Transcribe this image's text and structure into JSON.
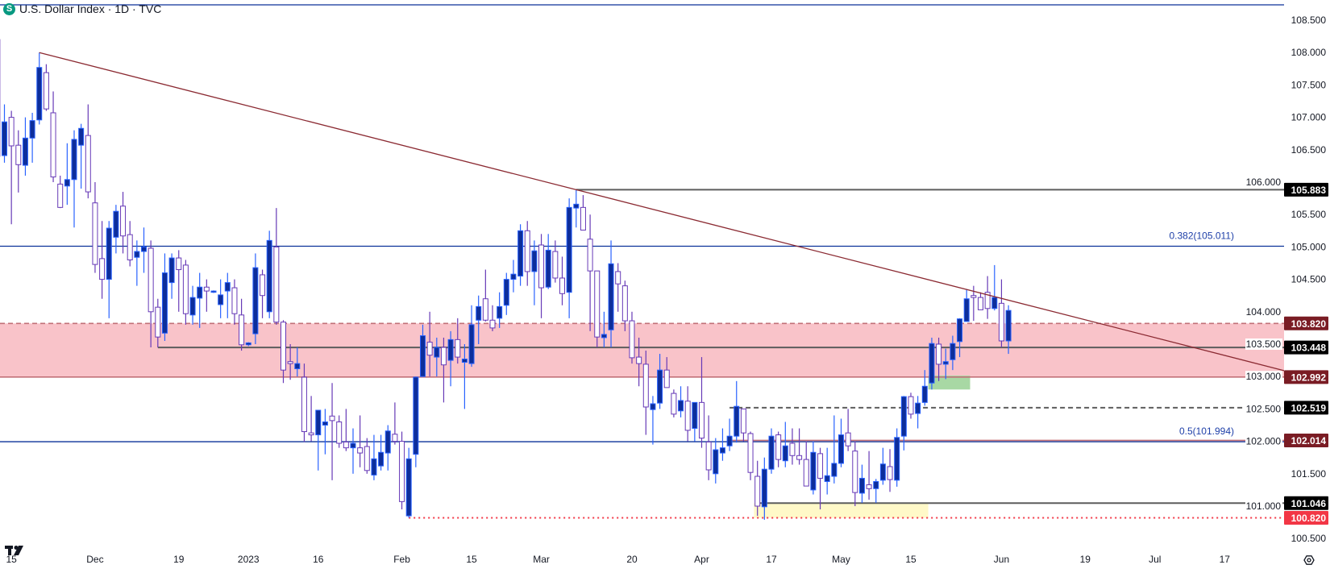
{
  "header": {
    "title": "U.S. Dollar Index · 1D · TVC",
    "symbol_icon": "S"
  },
  "colors": {
    "up_fill": "#0d2e9b",
    "up_border": "#2962ff",
    "down_fill": "#ffffff",
    "down_border": "#673ab7",
    "trendline": "#8b2a32",
    "fib": "#0c3299",
    "zone": "#f9c3c9",
    "zone_line": "#c27078",
    "level_gray": "#5d5d5d",
    "yellow_zone": "#fff9c8",
    "green_zone": "#a8d8a4",
    "label_black": "#000000",
    "label_red": "#7a1c24",
    "label_low": "#f23645"
  },
  "price_axis": {
    "ticks": [
      "108.500",
      "108.000",
      "107.500",
      "107.000",
      "106.500",
      "106.000",
      "105.500",
      "105.000",
      "104.500",
      "104.000",
      "103.500",
      "103.000",
      "102.500",
      "102.000",
      "101.500",
      "101.000",
      "100.500"
    ]
  },
  "time_axis": {
    "labels": [
      {
        "text": "15",
        "date": "2022-11-15"
      },
      {
        "text": "Dec",
        "date": "2022-12-01"
      },
      {
        "text": "19",
        "date": "2022-12-19"
      },
      {
        "text": "2023",
        "date": "2023-01-02"
      },
      {
        "text": "16",
        "date": "2023-01-16"
      },
      {
        "text": "Feb",
        "date": "2023-02-01"
      },
      {
        "text": "15",
        "date": "2023-02-15"
      },
      {
        "text": "Mar",
        "date": "2023-03-01"
      },
      {
        "text": "20",
        "date": "2023-03-20"
      },
      {
        "text": "Apr",
        "date": "2023-04-03"
      },
      {
        "text": "17",
        "date": "2023-04-17"
      },
      {
        "text": "May",
        "date": "2023-05-01"
      },
      {
        "text": "15",
        "date": "2023-05-15"
      },
      {
        "text": "Jun",
        "date": "2023-06-01"
      },
      {
        "text": "19",
        "date": "2023-06-19"
      },
      {
        "text": "Jul",
        "date": "2023-07-03"
      },
      {
        "text": "17",
        "date": "2023-07-17"
      }
    ]
  },
  "fib_levels": [
    {
      "label": "0.382(105.011)",
      "price": 105.011
    },
    {
      "label": "0.5(101.994)",
      "price": 101.994
    }
  ],
  "levels": [
    {
      "label": "105.883",
      "price": 105.883,
      "from": "2023-03-08",
      "style": "solid",
      "color": "level_gray",
      "box": "label_black"
    },
    {
      "label": "103.820",
      "price": 103.82,
      "from": "2022-11-11",
      "style": "dashed",
      "color": "zone_line",
      "box": "label_red"
    },
    {
      "label": "103.448",
      "price": 103.448,
      "from": "2022-12-14",
      "style": "solid",
      "color": "level_gray",
      "box": "label_black"
    },
    {
      "label": "102.992",
      "price": 102.992,
      "from": "2022-11-11",
      "style": "solid",
      "color": "zone_line",
      "box": "label_red"
    },
    {
      "label": "102.519",
      "price": 102.519,
      "from": "2023-04-07",
      "style": "dashed",
      "color": "level_gray",
      "box": "label_black"
    },
    {
      "label": "102.014",
      "price": 102.014,
      "from": "2023-04-07",
      "style": "solid",
      "color": "zone_line",
      "box": "label_red"
    },
    {
      "label": "101.046",
      "price": 101.046,
      "from": "2023-04-13",
      "style": "solid",
      "color": "level_gray",
      "box": "label_black"
    },
    {
      "label": "100.820",
      "price": 100.82,
      "from": "2023-02-02",
      "style": "dotted",
      "color": "label_low",
      "box": "label_low"
    }
  ],
  "zones": {
    "resistance": {
      "top": 103.82,
      "bottom": 102.992
    },
    "support": {
      "top": 101.046,
      "bottom": 100.82,
      "from": "2023-04-13",
      "to": "2023-05-17"
    },
    "breakout": {
      "top": 103.015,
      "bottom": 102.8,
      "from": "2023-05-18",
      "to": "2023-05-25"
    }
  },
  "trendline": {
    "from": {
      "date": "2022-11-21",
      "price": 108.0
    },
    "to": {
      "date": "2023-03-08",
      "price": 105.883
    }
  },
  "icons": {
    "logo": "tradingview-logo",
    "settings": "gear-icon"
  },
  "chart_data": {
    "type": "candlestick",
    "title": "U.S. Dollar Index · 1D · TVC",
    "ylim": [
      100.5,
      108.5
    ],
    "grid": false,
    "columns": [
      "date",
      "open",
      "high",
      "low",
      "close"
    ],
    "candles": [
      [
        "2022-11-11",
        108.2,
        108.3,
        106.3,
        106.4
      ],
      [
        "2022-11-14",
        106.41,
        107.2,
        106.3,
        106.93
      ],
      [
        "2022-11-15",
        107.0,
        107.1,
        105.35,
        106.56
      ],
      [
        "2022-11-16",
        106.57,
        106.8,
        105.84,
        106.27
      ],
      [
        "2022-11-17",
        106.26,
        107.0,
        106.1,
        106.68
      ],
      [
        "2022-11-18",
        106.68,
        107.07,
        106.3,
        106.95
      ],
      [
        "2022-11-21",
        106.96,
        108.0,
        106.89,
        107.77
      ],
      [
        "2022-11-22",
        107.69,
        107.82,
        107.1,
        107.13
      ],
      [
        "2022-11-23",
        107.07,
        107.4,
        106.0,
        106.08
      ],
      [
        "2022-11-24",
        105.97,
        106.1,
        105.6,
        105.61
      ],
      [
        "2022-11-25",
        105.94,
        106.6,
        105.65,
        106.04
      ],
      [
        "2022-11-28",
        106.04,
        106.8,
        105.3,
        106.66
      ],
      [
        "2022-11-29",
        106.57,
        106.9,
        105.9,
        106.83
      ],
      [
        "2022-11-30",
        106.72,
        107.2,
        105.75,
        105.85
      ],
      [
        "2022-12-01",
        105.68,
        106.0,
        104.6,
        104.73
      ],
      [
        "2022-12-02",
        104.82,
        105.4,
        104.2,
        104.5
      ],
      [
        "2022-12-05",
        104.5,
        105.4,
        103.9,
        105.29
      ],
      [
        "2022-12-06",
        105.15,
        105.65,
        104.9,
        105.55
      ],
      [
        "2022-12-07",
        105.63,
        105.85,
        104.9,
        105.17
      ],
      [
        "2022-12-08",
        105.19,
        105.4,
        104.7,
        104.8
      ],
      [
        "2022-12-09",
        104.84,
        105.1,
        104.4,
        104.93
      ],
      [
        "2022-12-12",
        104.93,
        105.3,
        104.6,
        105.0
      ],
      [
        "2022-12-13",
        104.98,
        105.1,
        103.45,
        104.0
      ],
      [
        "2022-12-14",
        104.07,
        104.2,
        103.45,
        103.61
      ],
      [
        "2022-12-15",
        103.67,
        104.9,
        103.55,
        104.6
      ],
      [
        "2022-12-16",
        104.45,
        104.9,
        104.2,
        104.83
      ],
      [
        "2022-12-19",
        104.83,
        104.95,
        104.0,
        104.65
      ],
      [
        "2022-12-20",
        104.72,
        104.8,
        103.8,
        103.97
      ],
      [
        "2022-12-21",
        103.95,
        104.4,
        103.8,
        104.22
      ],
      [
        "2022-12-22",
        104.21,
        104.6,
        103.75,
        104.38
      ],
      [
        "2022-12-23",
        104.38,
        104.5,
        104.0,
        104.32
      ],
      [
        "2022-12-26",
        104.3,
        104.33,
        104.29,
        104.32
      ],
      [
        "2022-12-27",
        104.11,
        104.5,
        103.9,
        104.26
      ],
      [
        "2022-12-28",
        104.32,
        104.6,
        103.9,
        104.45
      ],
      [
        "2022-12-29",
        104.37,
        104.5,
        103.8,
        103.97
      ],
      [
        "2022-12-30",
        103.95,
        104.2,
        103.4,
        103.49
      ],
      [
        "2023-01-02",
        103.49,
        103.53,
        103.47,
        103.52
      ],
      [
        "2023-01-03",
        103.66,
        104.9,
        103.5,
        104.68
      ],
      [
        "2023-01-04",
        104.57,
        104.65,
        103.9,
        104.25
      ],
      [
        "2023-01-05",
        104.0,
        105.25,
        103.9,
        105.1
      ],
      [
        "2023-01-06",
        105.0,
        105.6,
        103.8,
        103.84
      ],
      [
        "2023-01-09",
        103.84,
        103.87,
        102.9,
        103.1
      ],
      [
        "2023-01-10",
        103.23,
        103.5,
        102.95,
        103.2
      ],
      [
        "2023-01-11",
        103.12,
        103.45,
        103.0,
        103.2
      ],
      [
        "2023-01-12",
        102.99,
        103.2,
        101.99,
        102.15
      ],
      [
        "2023-01-13",
        102.13,
        102.7,
        102.0,
        102.1
      ],
      [
        "2023-01-16",
        102.1,
        102.48,
        101.55,
        102.48
      ],
      [
        "2023-01-17",
        102.25,
        102.5,
        101.8,
        102.3
      ],
      [
        "2023-01-18",
        102.39,
        102.9,
        101.4,
        102.32
      ],
      [
        "2023-01-19",
        102.3,
        102.4,
        101.9,
        101.97
      ],
      [
        "2023-01-20",
        101.99,
        102.5,
        101.85,
        101.9
      ],
      [
        "2023-01-23",
        101.9,
        102.2,
        101.5,
        101.97
      ],
      [
        "2023-01-24",
        101.9,
        102.4,
        101.6,
        101.82
      ],
      [
        "2023-01-25",
        101.92,
        102.05,
        101.5,
        101.55
      ],
      [
        "2023-01-26",
        101.48,
        102.1,
        101.4,
        101.73
      ],
      [
        "2023-01-27",
        101.62,
        102.1,
        101.55,
        101.83
      ],
      [
        "2023-01-30",
        101.82,
        102.25,
        101.55,
        102.16
      ],
      [
        "2023-01-31",
        102.11,
        102.6,
        101.95,
        102.0
      ],
      [
        "2023-02-01",
        102.0,
        102.15,
        100.95,
        101.07
      ],
      [
        "2023-02-02",
        100.85,
        101.9,
        100.82,
        101.73
      ],
      [
        "2023-02-03",
        101.8,
        103.0,
        101.6,
        102.99
      ],
      [
        "2023-02-06",
        103.0,
        103.8,
        103.0,
        103.63
      ],
      [
        "2023-02-07",
        103.53,
        104.0,
        103.0,
        103.33
      ],
      [
        "2023-02-08",
        103.3,
        103.6,
        103.0,
        103.45
      ],
      [
        "2023-02-09",
        103.45,
        103.6,
        102.6,
        103.18
      ],
      [
        "2023-02-10",
        103.25,
        103.7,
        102.85,
        103.57
      ],
      [
        "2023-02-13",
        103.57,
        103.9,
        103.2,
        103.3
      ],
      [
        "2023-02-14",
        103.22,
        103.5,
        102.5,
        103.27
      ],
      [
        "2023-02-15",
        103.2,
        104.1,
        103.15,
        103.8
      ],
      [
        "2023-02-16",
        103.87,
        104.25,
        103.5,
        104.08
      ],
      [
        "2023-02-17",
        104.2,
        104.65,
        103.85,
        103.87
      ],
      [
        "2023-02-20",
        103.87,
        104.1,
        103.7,
        103.75
      ],
      [
        "2023-02-21",
        103.9,
        104.3,
        103.75,
        104.08
      ],
      [
        "2023-02-22",
        104.1,
        104.6,
        103.95,
        104.5
      ],
      [
        "2023-02-23",
        104.5,
        104.8,
        104.3,
        104.58
      ],
      [
        "2023-02-24",
        104.55,
        105.35,
        104.4,
        105.25
      ],
      [
        "2023-02-27",
        105.25,
        105.4,
        104.4,
        104.62
      ],
      [
        "2023-02-28",
        104.62,
        105.1,
        104.1,
        104.94
      ],
      [
        "2023-03-01",
        105.03,
        105.2,
        103.9,
        104.37
      ],
      [
        "2023-03-02",
        104.38,
        105.2,
        104.35,
        104.95
      ],
      [
        "2023-03-03",
        104.93,
        105.1,
        104.45,
        104.52
      ],
      [
        "2023-03-06",
        104.52,
        104.85,
        104.1,
        104.28
      ],
      [
        "2023-03-07",
        104.3,
        105.75,
        103.9,
        105.61
      ],
      [
        "2023-03-08",
        105.6,
        105.883,
        105.3,
        105.66
      ],
      [
        "2023-03-09",
        105.61,
        105.8,
        105.26,
        105.26
      ],
      [
        "2023-03-10",
        105.12,
        105.5,
        103.7,
        104.63
      ],
      [
        "2023-03-13",
        104.63,
        104.63,
        103.45,
        103.61
      ],
      [
        "2023-03-14",
        103.6,
        104.0,
        103.45,
        103.65
      ],
      [
        "2023-03-15",
        103.72,
        105.1,
        103.45,
        104.74
      ],
      [
        "2023-03-16",
        104.62,
        104.75,
        104.0,
        104.43
      ],
      [
        "2023-03-17",
        104.4,
        104.48,
        103.7,
        103.86
      ],
      [
        "2023-03-20",
        103.86,
        104.0,
        103.2,
        103.29
      ],
      [
        "2023-03-21",
        103.3,
        103.6,
        102.85,
        103.2
      ],
      [
        "2023-03-22",
        103.19,
        103.4,
        102.1,
        102.53
      ],
      [
        "2023-03-23",
        102.49,
        102.7,
        101.95,
        102.58
      ],
      [
        "2023-03-24",
        102.59,
        103.35,
        102.5,
        103.1
      ],
      [
        "2023-03-27",
        103.1,
        103.3,
        102.83,
        102.83
      ],
      [
        "2023-03-28",
        102.74,
        102.8,
        102.37,
        102.42
      ],
      [
        "2023-03-29",
        102.47,
        102.85,
        102.37,
        102.63
      ],
      [
        "2023-03-30",
        102.62,
        102.85,
        102.0,
        102.17
      ],
      [
        "2023-03-31",
        102.2,
        102.6,
        102.0,
        102.6
      ],
      [
        "2023-04-03",
        102.6,
        103.3,
        101.9,
        102.05
      ],
      [
        "2023-04-04",
        101.99,
        102.4,
        101.4,
        101.56
      ],
      [
        "2023-04-05",
        101.5,
        102.05,
        101.35,
        101.87
      ],
      [
        "2023-04-06",
        101.82,
        102.2,
        101.7,
        101.9
      ],
      [
        "2023-04-07",
        101.93,
        102.35,
        101.85,
        102.08
      ],
      [
        "2023-04-10",
        102.08,
        102.93,
        101.98,
        102.54
      ],
      [
        "2023-04-11",
        102.5,
        102.5,
        102.0,
        102.13
      ],
      [
        "2023-04-12",
        102.12,
        102.15,
        101.4,
        101.52
      ],
      [
        "2023-04-13",
        101.46,
        101.7,
        100.85,
        101.0
      ],
      [
        "2023-04-14",
        100.99,
        101.75,
        100.79,
        101.57
      ],
      [
        "2023-04-17",
        101.57,
        102.2,
        101.5,
        102.08
      ],
      [
        "2023-04-18",
        102.1,
        102.15,
        101.6,
        101.72
      ],
      [
        "2023-04-19",
        101.7,
        102.3,
        101.6,
        101.93
      ],
      [
        "2023-04-20",
        101.97,
        102.2,
        101.64,
        101.78
      ],
      [
        "2023-04-21",
        101.78,
        102.2,
        101.64,
        101.72
      ],
      [
        "2023-04-24",
        101.72,
        102.0,
        101.31,
        101.31
      ],
      [
        "2023-04-25",
        101.25,
        102.0,
        101.18,
        101.83
      ],
      [
        "2023-04-26",
        101.81,
        101.9,
        100.95,
        101.43
      ],
      [
        "2023-04-27",
        101.38,
        101.9,
        101.18,
        101.47
      ],
      [
        "2023-04-28",
        101.46,
        102.4,
        101.35,
        101.66
      ],
      [
        "2023-05-01",
        101.66,
        102.35,
        101.6,
        102.1
      ],
      [
        "2023-05-02",
        102.13,
        102.5,
        101.85,
        101.93
      ],
      [
        "2023-05-03",
        101.85,
        102.0,
        101.0,
        101.21
      ],
      [
        "2023-05-04",
        101.2,
        101.64,
        101.05,
        101.43
      ],
      [
        "2023-05-05",
        101.33,
        101.85,
        101.1,
        101.27
      ],
      [
        "2023-05-08",
        101.27,
        101.42,
        101.05,
        101.38
      ],
      [
        "2023-05-09",
        101.4,
        101.9,
        101.33,
        101.65
      ],
      [
        "2023-05-10",
        101.61,
        101.88,
        101.22,
        101.41
      ],
      [
        "2023-05-11",
        101.4,
        102.2,
        101.3,
        102.06
      ],
      [
        "2023-05-12",
        102.08,
        102.7,
        101.86,
        102.69
      ],
      [
        "2023-05-15",
        102.69,
        102.75,
        102.35,
        102.42
      ],
      [
        "2023-05-16",
        102.43,
        102.7,
        102.2,
        102.59
      ],
      [
        "2023-05-17",
        102.6,
        103.1,
        102.55,
        102.85
      ],
      [
        "2023-05-18",
        102.9,
        103.6,
        102.8,
        103.51
      ],
      [
        "2023-05-19",
        103.5,
        103.6,
        102.93,
        103.19
      ],
      [
        "2023-05-22",
        103.19,
        103.43,
        102.96,
        103.23
      ],
      [
        "2023-05-23",
        103.26,
        103.63,
        103.1,
        103.51
      ],
      [
        "2023-05-24",
        103.54,
        103.9,
        103.3,
        103.89
      ],
      [
        "2023-05-25",
        103.85,
        104.35,
        103.85,
        104.2
      ],
      [
        "2023-05-26",
        104.25,
        104.4,
        103.86,
        104.22
      ],
      [
        "2023-05-29",
        104.22,
        104.3,
        104.03,
        104.03
      ],
      [
        "2023-05-30",
        104.3,
        104.55,
        103.89,
        104.05
      ],
      [
        "2023-05-31",
        104.05,
        104.72,
        104.02,
        104.22
      ],
      [
        "2023-06-01",
        104.13,
        104.5,
        103.45,
        103.55
      ],
      [
        "2023-06-02",
        103.55,
        104.1,
        103.35,
        104.02
      ]
    ]
  }
}
